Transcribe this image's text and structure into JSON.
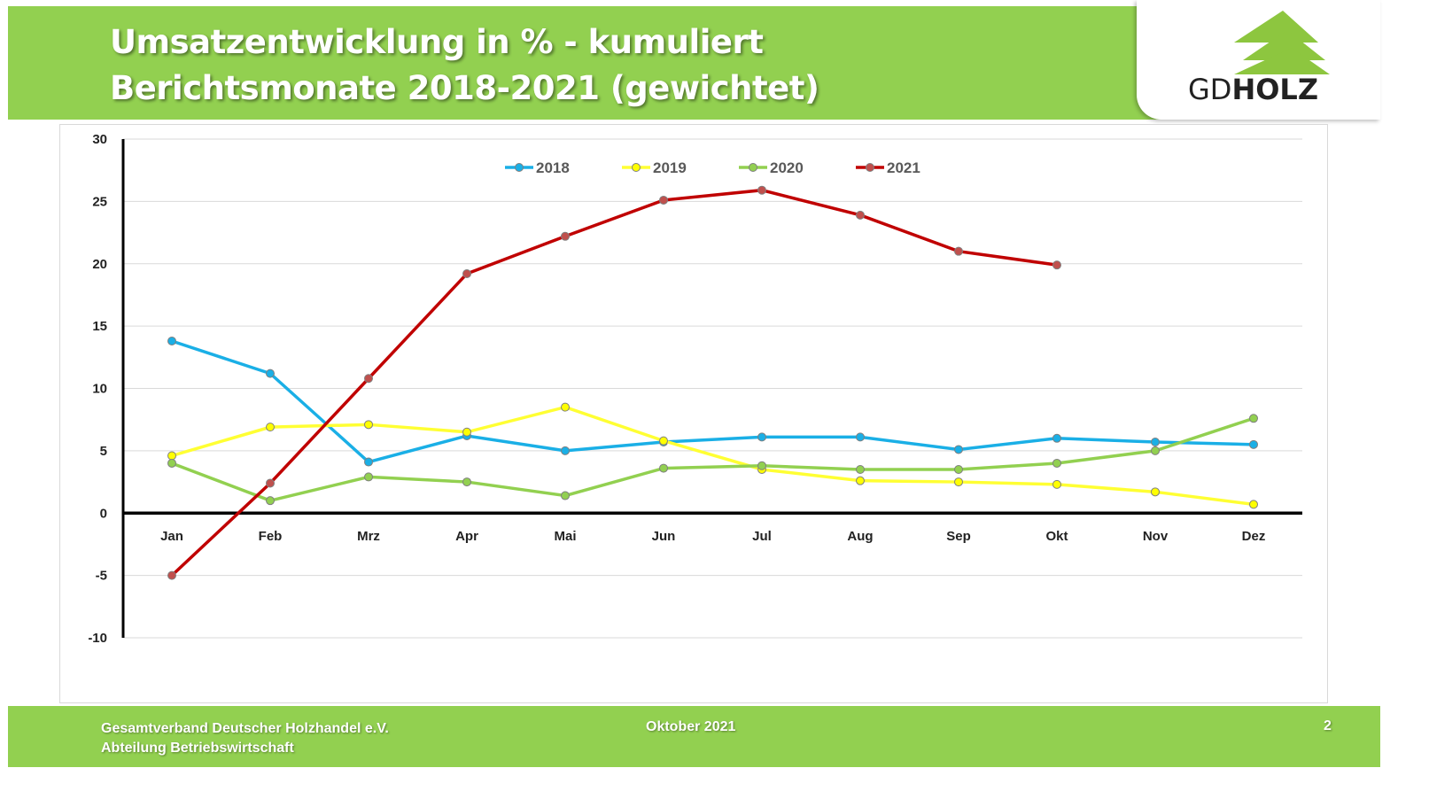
{
  "header": {
    "title_line1": "Umsatzentwicklung in % - kumuliert",
    "title_line2": "Berichtsmonate 2018-2021 (gewichtet)",
    "logo_text_light": "GD",
    "logo_text_bold": "HOLZ"
  },
  "footer": {
    "org": "Gesamtverband Deutscher Holzhandel e.V.",
    "dept": "Abteilung Betriebswirtschaft",
    "date": "Oktober 2021",
    "page": "2"
  },
  "chart_data": {
    "type": "line",
    "title": "Umsatzentwicklung in % - kumuliert",
    "xlabel": "",
    "ylabel": "",
    "categories": [
      "Jan",
      "Feb",
      "Mrz",
      "Apr",
      "Mai",
      "Jun",
      "Jul",
      "Aug",
      "Sep",
      "Okt",
      "Nov",
      "Dez"
    ],
    "ylim": [
      -10,
      30
    ],
    "yticks": [
      30,
      25,
      20,
      15,
      10,
      5,
      0,
      -5,
      -10
    ],
    "grid": true,
    "legend": "top-center",
    "series": [
      {
        "name": "2018",
        "color": "#1AAFE6",
        "marker": "#1AAFE6",
        "values": [
          13.8,
          11.2,
          4.1,
          6.2,
          5.0,
          5.7,
          6.1,
          6.1,
          5.1,
          6.0,
          5.7,
          5.5
        ]
      },
      {
        "name": "2019",
        "color": "#FFFF33",
        "marker": "#FFFF00",
        "values": [
          4.6,
          6.9,
          7.1,
          6.5,
          8.5,
          5.8,
          3.5,
          2.6,
          2.5,
          2.3,
          1.7,
          0.7
        ]
      },
      {
        "name": "2020",
        "color": "#92D050",
        "marker": "#92D050",
        "values": [
          4.0,
          1.0,
          2.9,
          2.5,
          1.4,
          3.6,
          3.8,
          3.5,
          3.5,
          4.0,
          5.0,
          7.6
        ]
      },
      {
        "name": "2021",
        "color": "#C00000",
        "marker": "#C0504D",
        "values": [
          -5.0,
          2.4,
          10.8,
          19.2,
          22.2,
          25.1,
          25.9,
          23.9,
          21.0,
          19.9,
          null,
          null
        ]
      }
    ]
  }
}
